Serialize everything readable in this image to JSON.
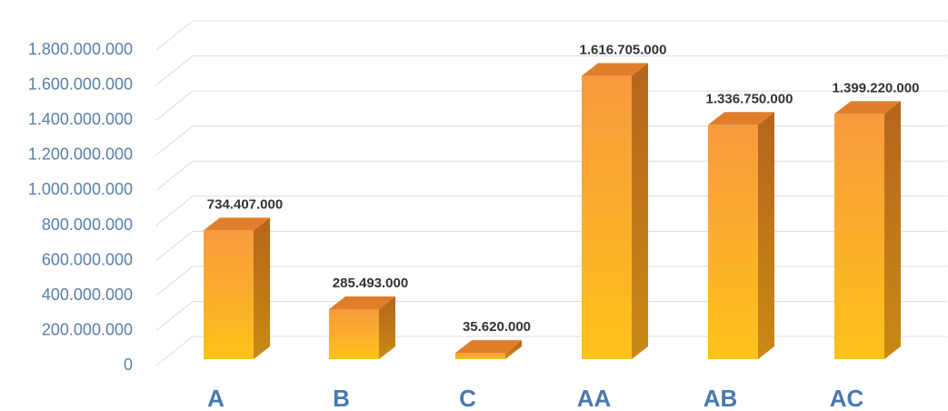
{
  "chart_data": {
    "type": "bar",
    "title": "",
    "xlabel": "",
    "ylabel": "",
    "categories": [
      "A",
      "B",
      "C",
      "AA",
      "AB",
      "AC"
    ],
    "values": [
      734407000,
      285493000,
      35620000,
      1616705000,
      1336750000,
      1399220000
    ],
    "value_labels": [
      "734.407.000",
      "285.493.000",
      "35.620.000",
      "1.616.705.000",
      "1.336.750.000",
      "1.399.220.000"
    ],
    "ylim": [
      0,
      1800000000
    ],
    "yticks": [
      0,
      200000000,
      400000000,
      600000000,
      800000000,
      1000000000,
      1200000000,
      1400000000,
      1600000000,
      1800000000
    ],
    "ytick_labels": [
      "0",
      "200.000.000",
      "400.000.000",
      "600.000.000",
      "800.000.000",
      "1.000.000.000",
      "1.200.000.000",
      "1.400.000.000",
      "1.600.000.000",
      "1.800.000.000"
    ],
    "grid": true,
    "style": "3d-column",
    "colors": {
      "bar_top": "#f79a3e",
      "bar_bottom": "#ffc21a",
      "side_top": "#b5651d",
      "side_bottom": "#c98a14",
      "cap": "#e07e2c",
      "ytick": "#5a7fa6",
      "xtick": "#4a78b0",
      "label": "#333333",
      "grid": "#dcdcdc"
    }
  }
}
